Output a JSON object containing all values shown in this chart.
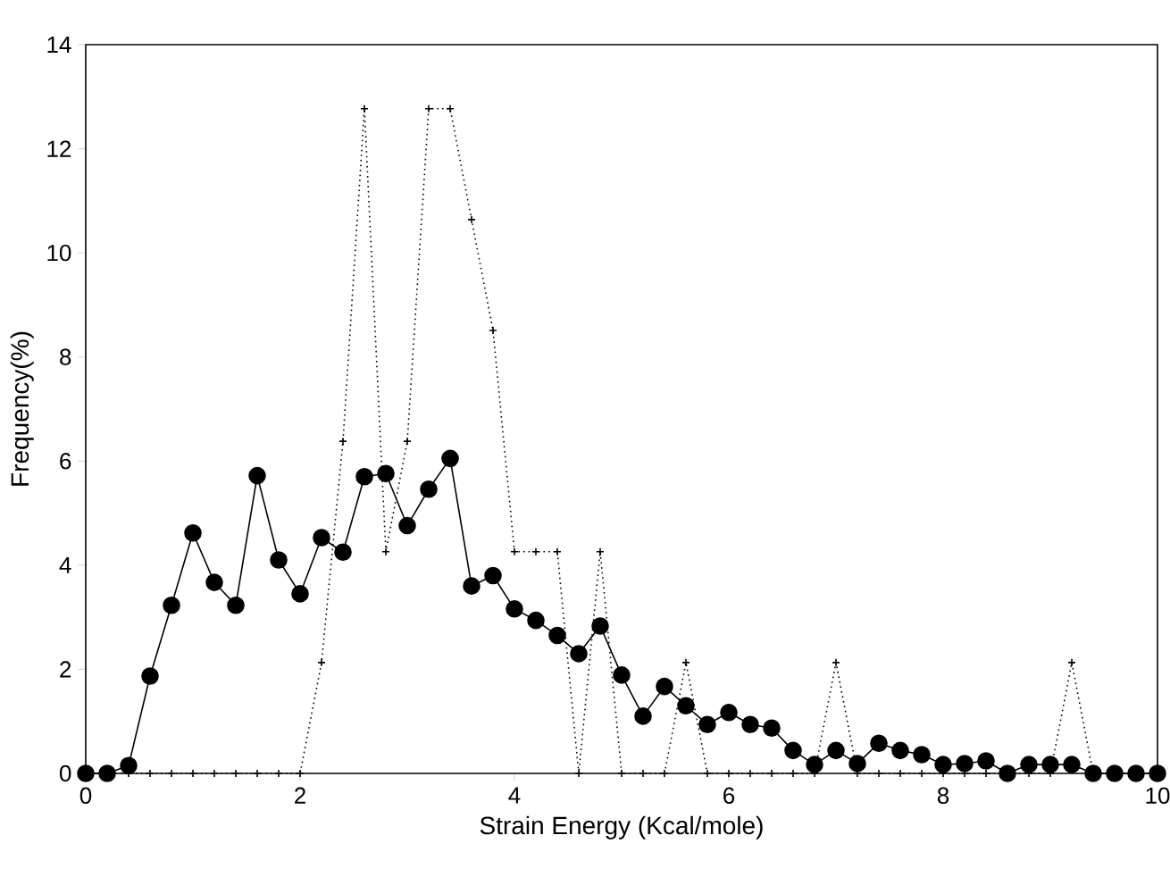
{
  "chart_data": {
    "type": "line",
    "xlabel": "Strain Energy (Kcal/mole)",
    "ylabel": "Frequency(%)",
    "x": [
      0,
      0.2,
      0.4,
      0.6,
      0.8,
      1.0,
      1.2,
      1.4,
      1.6,
      1.8,
      2.0,
      2.2,
      2.4,
      2.6,
      2.8,
      3.0,
      3.2,
      3.4,
      3.6,
      3.8,
      4.0,
      4.2,
      4.4,
      4.6,
      4.8,
      5.0,
      5.2,
      5.4,
      5.6,
      5.8,
      6.0,
      6.2,
      6.4,
      6.6,
      6.8,
      7.0,
      7.2,
      7.4,
      7.6,
      7.8,
      8.0,
      8.2,
      8.4,
      8.6,
      8.8,
      9.0,
      9.2,
      9.4,
      9.6,
      9.8,
      10.0
    ],
    "series": [
      {
        "color": "#000000",
        "marker": "circle",
        "line_style": "solid",
        "values": [
          0,
          0,
          0.15,
          1.87,
          3.23,
          4.62,
          3.67,
          3.23,
          5.72,
          4.1,
          3.45,
          4.53,
          4.25,
          5.7,
          5.76,
          4.76,
          5.46,
          6.05,
          3.6,
          3.8,
          3.16,
          2.94,
          2.65,
          2.3,
          2.83,
          1.89,
          1.1,
          1.67,
          1.3,
          0.94,
          1.17,
          0.94,
          0.87,
          0.44,
          0.17,
          0.44,
          0.19,
          0.58,
          0.44,
          0.36,
          0.17,
          0.19,
          0.24,
          0,
          0.17,
          0.17,
          0.17,
          0,
          0,
          0,
          0
        ]
      },
      {
        "color": "#000000",
        "marker": "cross",
        "line_style": "dotted",
        "values": [
          0,
          0,
          0,
          0,
          0,
          0,
          0,
          0,
          0,
          0,
          0,
          2.13,
          6.38,
          12.77,
          4.26,
          6.38,
          12.77,
          12.77,
          10.64,
          8.51,
          4.26,
          4.26,
          4.26,
          0,
          4.26,
          0,
          0,
          0,
          2.13,
          0,
          0,
          0,
          0,
          0,
          0,
          2.13,
          0,
          0,
          0,
          0,
          0,
          0,
          0,
          0,
          0,
          0,
          2.13,
          0,
          0,
          0,
          0
        ]
      }
    ],
    "xlim": [
      0,
      10
    ],
    "ylim": [
      0,
      14
    ],
    "xticks": [
      0,
      2,
      4,
      6,
      8,
      10
    ],
    "yticks": [
      0,
      2,
      4,
      6,
      8,
      10,
      12,
      14
    ],
    "grid": false
  }
}
